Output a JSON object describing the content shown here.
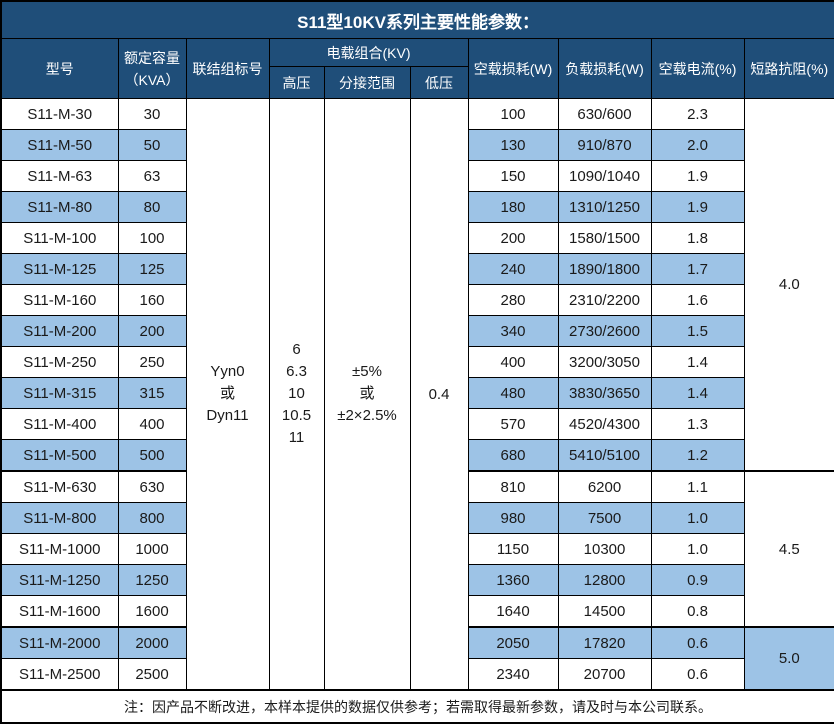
{
  "title": "S11型10KV系列主要性能参数：",
  "table": {
    "columns": {
      "model": "型号",
      "capacity_line1": "额定容量",
      "capacity_line2": "（KVA）",
      "connection": "联结组标号",
      "voltage_group": "电载组合(KV)",
      "hv": "高压",
      "tap_range": "分接范围",
      "lv": "低压",
      "no_load_loss": "空载损耗(W)",
      "load_loss": "负载损耗(W)",
      "no_load_current": "空载电流(%)",
      "impedance": "短路抗阻(%)"
    },
    "merged": {
      "connection_lines": [
        "Yyn0",
        "或",
        "Dyn11"
      ],
      "hv_lines": [
        "6",
        "6.3",
        "10",
        "10.5",
        "11"
      ],
      "tap_lines": [
        "±5%",
        "或",
        "±2×2.5%"
      ],
      "lv_value": "0.4"
    },
    "rows": [
      {
        "model": "S11-M-30",
        "capacity": "30",
        "no_load_loss": "100",
        "load_loss": "630/600",
        "no_load_current": "2.3"
      },
      {
        "model": "S11-M-50",
        "capacity": "50",
        "no_load_loss": "130",
        "load_loss": "910/870",
        "no_load_current": "2.0"
      },
      {
        "model": "S11-M-63",
        "capacity": "63",
        "no_load_loss": "150",
        "load_loss": "1090/1040",
        "no_load_current": "1.9"
      },
      {
        "model": "S11-M-80",
        "capacity": "80",
        "no_load_loss": "180",
        "load_loss": "1310/1250",
        "no_load_current": "1.9"
      },
      {
        "model": "S11-M-100",
        "capacity": "100",
        "no_load_loss": "200",
        "load_loss": "1580/1500",
        "no_load_current": "1.8"
      },
      {
        "model": "S11-M-125",
        "capacity": "125",
        "no_load_loss": "240",
        "load_loss": "1890/1800",
        "no_load_current": "1.7"
      },
      {
        "model": "S11-M-160",
        "capacity": "160",
        "no_load_loss": "280",
        "load_loss": "2310/2200",
        "no_load_current": "1.6"
      },
      {
        "model": "S11-M-200",
        "capacity": "200",
        "no_load_loss": "340",
        "load_loss": "2730/2600",
        "no_load_current": "1.5"
      },
      {
        "model": "S11-M-250",
        "capacity": "250",
        "no_load_loss": "400",
        "load_loss": "3200/3050",
        "no_load_current": "1.4"
      },
      {
        "model": "S11-M-315",
        "capacity": "315",
        "no_load_loss": "480",
        "load_loss": "3830/3650",
        "no_load_current": "1.4"
      },
      {
        "model": "S11-M-400",
        "capacity": "400",
        "no_load_loss": "570",
        "load_loss": "4520/4300",
        "no_load_current": "1.3"
      },
      {
        "model": "S11-M-500",
        "capacity": "500",
        "no_load_loss": "680",
        "load_loss": "5410/5100",
        "no_load_current": "1.2"
      },
      {
        "model": "S11-M-630",
        "capacity": "630",
        "no_load_loss": "810",
        "load_loss": "6200",
        "no_load_current": "1.1"
      },
      {
        "model": "S11-M-800",
        "capacity": "800",
        "no_load_loss": "980",
        "load_loss": "7500",
        "no_load_current": "1.0"
      },
      {
        "model": "S11-M-1000",
        "capacity": "1000",
        "no_load_loss": "1150",
        "load_loss": "10300",
        "no_load_current": "1.0"
      },
      {
        "model": "S11-M-1250",
        "capacity": "1250",
        "no_load_loss": "1360",
        "load_loss": "12800",
        "no_load_current": "0.9"
      },
      {
        "model": "S11-M-1600",
        "capacity": "1600",
        "no_load_loss": "1640",
        "load_loss": "14500",
        "no_load_current": "0.8"
      },
      {
        "model": "S11-M-2000",
        "capacity": "2000",
        "no_load_loss": "2050",
        "load_loss": "17820",
        "no_load_current": "0.6"
      },
      {
        "model": "S11-M-2500",
        "capacity": "2500",
        "no_load_loss": "2340",
        "load_loss": "20700",
        "no_load_current": "0.6"
      }
    ],
    "impedance_groups": [
      {
        "value": "4.0",
        "span": 12
      },
      {
        "value": "4.5",
        "span": 5
      },
      {
        "value": "5.0",
        "span": 2
      }
    ]
  },
  "footer": {
    "note": "注：因产品不断改进，本样本提供的数据仅供参考；若需取得最新参数，请及时与本公司联系。"
  },
  "colors": {
    "header_bg": "#1F4E79",
    "row_alt_bg": "#9DC3E6",
    "border": "#000000",
    "header_text": "#ffffff"
  }
}
